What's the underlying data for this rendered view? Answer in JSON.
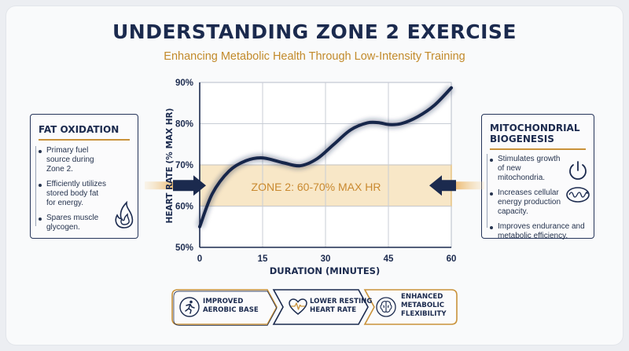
{
  "header": {
    "title": "UNDERSTANDING ZONE 2 EXERCISE",
    "subtitle": "Enhancing Metabolic Health Through Low-Intensity Training"
  },
  "left_panel": {
    "title": "FAT OXIDATION",
    "bullets": [
      "Primary fuel source during Zone 2.",
      "Efficiently utilizes stored body fat for energy.",
      "Spares muscle glycogen."
    ],
    "icon": "flame-icon"
  },
  "right_panel": {
    "title_line1": "MITOCHONDRIAL",
    "title_line2": "BIOGENESIS",
    "bullets": [
      "Stimulates growth of new mitochondria.",
      "Increases cellular energy production capacity.",
      "Improves endurance and metabolic efficiency."
    ],
    "icons": [
      "power-icon",
      "mitochondria-icon"
    ]
  },
  "chart_data": {
    "type": "line",
    "xlabel": "DURATION (MINUTES)",
    "ylabel": "HEART RATE (% MAX HR)",
    "xlim": [
      0,
      60
    ],
    "ylim": [
      50,
      90
    ],
    "x_ticks": [
      0,
      15,
      30,
      45,
      60
    ],
    "y_ticks": [
      50,
      60,
      70,
      80,
      90
    ],
    "y_tick_suffix": "%",
    "grid": true,
    "band": {
      "from": 60,
      "to": 70,
      "label": "ZONE 2: 60-70% MAX HR"
    },
    "series": [
      {
        "x": [
          0,
          3,
          7,
          11,
          15,
          20,
          24,
          28,
          32,
          36,
          40,
          43,
          45,
          48,
          52,
          56,
          60
        ],
        "y": [
          55,
          63,
          68.5,
          71,
          71.7,
          70.5,
          69.8,
          71.5,
          75,
          78.5,
          80.2,
          80.2,
          79.8,
          80,
          81.7,
          84.5,
          88.7
        ]
      }
    ]
  },
  "benefits": [
    {
      "line1": "IMPROVED",
      "line2": "AEROBIC BASE",
      "icon": "runner-icon"
    },
    {
      "line1": "LOWER RESTING",
      "line2": "HEART RATE",
      "icon": "heart-rate-icon"
    },
    {
      "line1": "ENHANCED",
      "line2": "METABOLIC",
      "line3": "FLEXIBILITY",
      "icon": "brain-icon"
    }
  ],
  "colors": {
    "navy": "#1b2a4e",
    "gold": "#c9923a",
    "band_fill": "#f7e3bd",
    "line": "#16264a"
  }
}
